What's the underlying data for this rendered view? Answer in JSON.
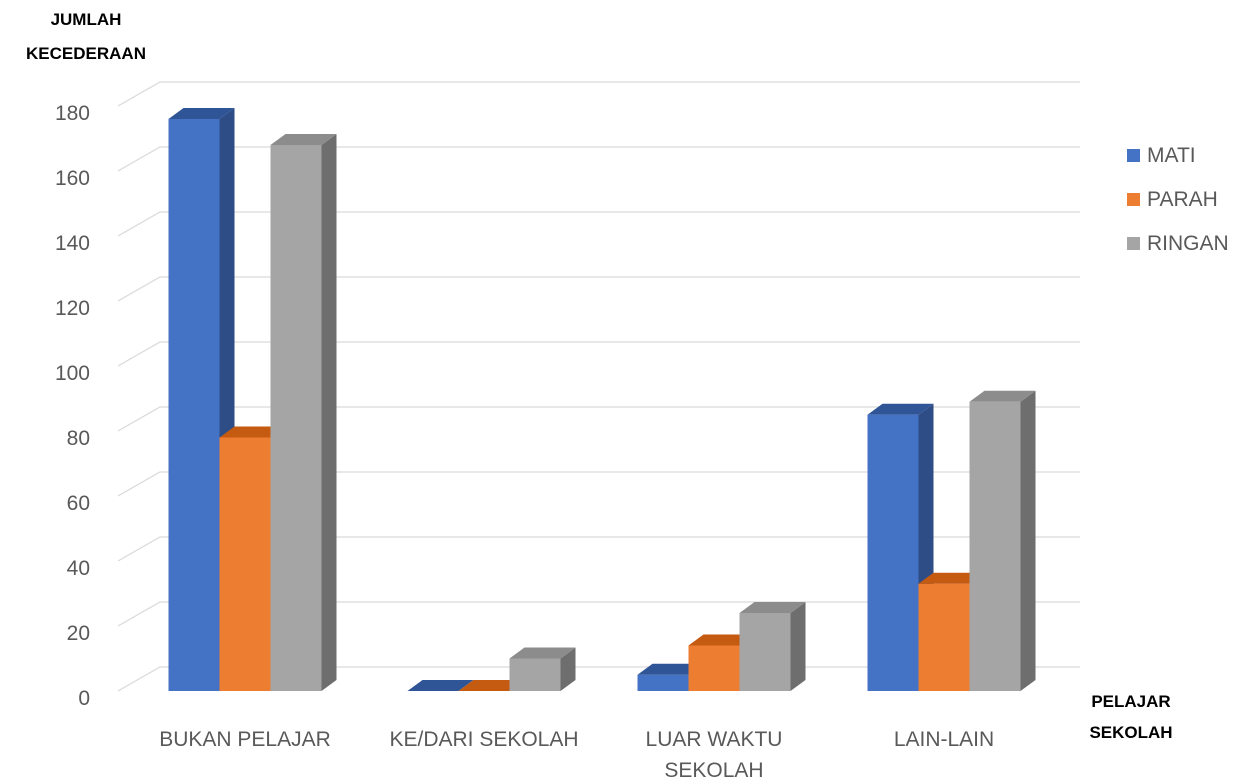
{
  "chart_data": {
    "type": "bar",
    "style": "3d-clustered-column",
    "ylabel": "JUMLAH KECEDERAAN",
    "ylabel_lines": [
      "JUMLAH",
      "KECEDERAAN"
    ],
    "xlabel": "PELAJAR SEKOLAH",
    "xlabel_lines": [
      "PELAJAR",
      "SEKOLAH"
    ],
    "categories": [
      "BUKAN PELAJAR",
      "KE/DARI SEKOLAH",
      "LUAR WAKTU SEKOLAH",
      "LAIN-LAIN"
    ],
    "category_lines": [
      [
        "BUKAN PELAJAR"
      ],
      [
        "KE/DARI SEKOLAH"
      ],
      [
        "LUAR WAKTU",
        "SEKOLAH"
      ],
      [
        "LAIN-LAIN"
      ]
    ],
    "ylim": [
      0,
      180
    ],
    "yticks": [
      0,
      20,
      40,
      60,
      80,
      100,
      120,
      140,
      160,
      180
    ],
    "grid": true,
    "legend_position": "right",
    "series": [
      {
        "name": "MATI",
        "values": [
          176,
          0,
          5,
          85
        ],
        "color": "#4472C4",
        "top": "#2F5597",
        "side": "#2E4D86"
      },
      {
        "name": "PARAH",
        "values": [
          78,
          0,
          14,
          33
        ],
        "color": "#ED7D31",
        "top": "#C55A11",
        "side": "#B05A1E"
      },
      {
        "name": "RINGAN",
        "values": [
          168,
          10,
          24,
          89
        ],
        "color": "#A5A5A5",
        "top": "#8C8C8C",
        "side": "#6E6E6E"
      }
    ]
  }
}
